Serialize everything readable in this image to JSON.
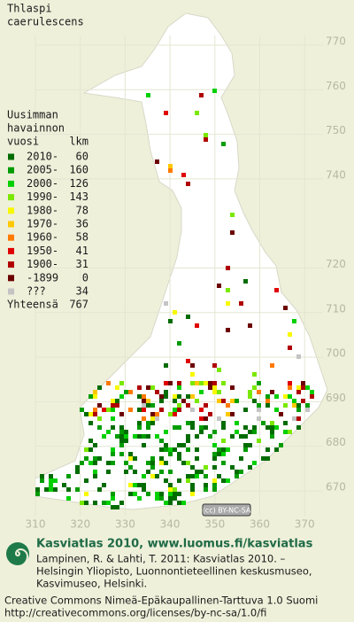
{
  "title": [
    "Thlaspi",
    "caerulescens"
  ],
  "legend": {
    "header": [
      "Uusimman",
      "havainnon",
      "vuosi",
      "lkm"
    ],
    "rows": [
      {
        "label": "2010-",
        "count": 60,
        "color": "#006c00"
      },
      {
        "label": "2005-",
        "count": 160,
        "color": "#009c00"
      },
      {
        "label": "2000-",
        "count": 126,
        "color": "#00d000"
      },
      {
        "label": "1990-",
        "count": 143,
        "color": "#7ae800"
      },
      {
        "label": "1980-",
        "count": 78,
        "color": "#f8f800"
      },
      {
        "label": "1970-",
        "count": 36,
        "color": "#ffc800"
      },
      {
        "label": "1960-",
        "count": 58,
        "color": "#ff7a00"
      },
      {
        "label": "1950-",
        "count": 41,
        "color": "#e00000"
      },
      {
        "label": "1900-",
        "count": 31,
        "color": "#b00000"
      },
      {
        "label": "-1899",
        "count": 0,
        "color": "#6c0000"
      },
      {
        "label": "???",
        "count": 34,
        "color": "#c4c4c4"
      }
    ],
    "total": {
      "label": "Yhteensä",
      "count": 767
    }
  },
  "northing_labels": [
    770,
    760,
    750,
    740,
    720,
    710,
    700,
    690,
    680,
    670
  ],
  "easting_labels": [
    310,
    320,
    330,
    340,
    350,
    360,
    370
  ],
  "license_badge": "(cc) BY-NC-SA",
  "footer": {
    "heading": "Kasviatlas 2010, www.luomus.fi/kasviatlas",
    "citation": [
      "Lampinen, R. & Lahti, T. 2011: Kasviatlas 2010. –",
      "Helsingin Yliopisto, Luonnontieteellinen keskusmuseo,",
      "Kasvimuseo, Helsinki."
    ],
    "license": [
      "Creative Commons Nimeä-Epäkaupallinen-Tarttuva 1.0 Suomi",
      "http://creativecommons.org/licenses/by-nc-sa/1.0/fi"
    ]
  }
}
